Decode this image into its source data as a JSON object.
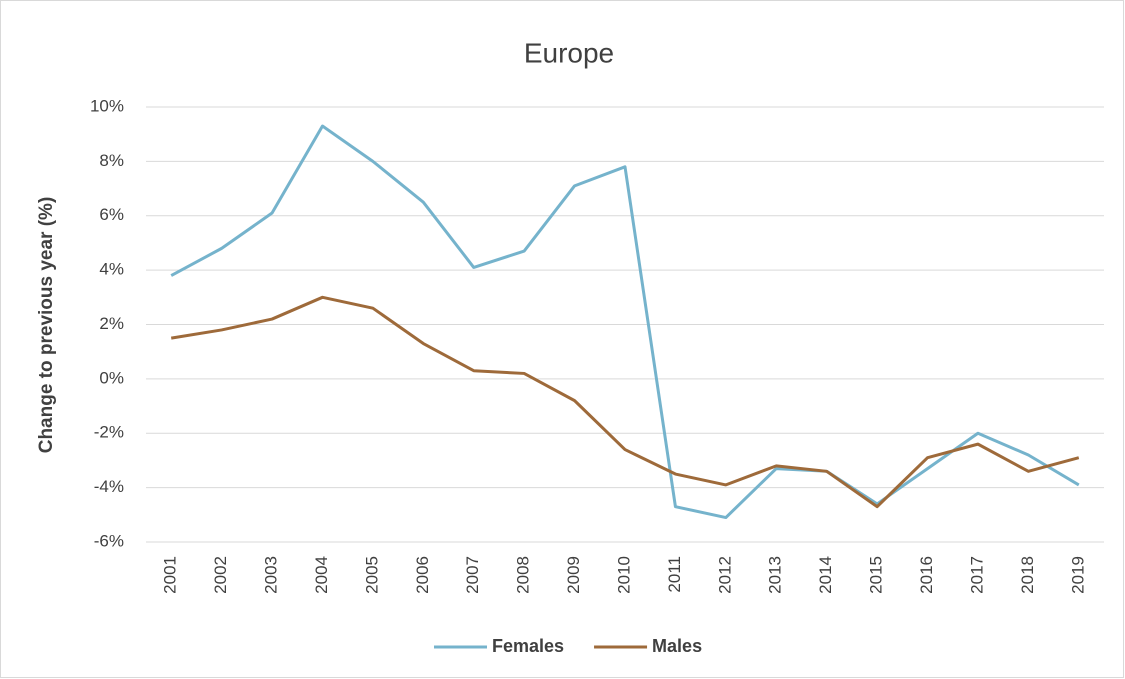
{
  "chart_data": {
    "type": "line",
    "title": "Europe",
    "y_label": "Change to previous year (%)",
    "categories": [
      "2001",
      "2002",
      "2003",
      "2004",
      "2005",
      "2006",
      "2007",
      "2008",
      "2009",
      "2010",
      "2011",
      "2012",
      "2013",
      "2014",
      "2015",
      "2016",
      "2017",
      "2018",
      "2019"
    ],
    "series": [
      {
        "name": "Females",
        "color": "#75b3cc",
        "values": [
          3.8,
          4.8,
          6.1,
          9.3,
          8.0,
          6.5,
          4.1,
          4.7,
          7.1,
          7.8,
          -4.7,
          -5.1,
          -3.3,
          -3.4,
          -4.6,
          -3.3,
          -2.0,
          -2.8,
          -3.9
        ]
      },
      {
        "name": "Males",
        "color": "#9e6a3a",
        "values": [
          1.5,
          1.8,
          2.2,
          3.0,
          2.6,
          1.3,
          0.3,
          0.2,
          -0.8,
          -2.6,
          -3.5,
          -3.9,
          -3.2,
          -3.4,
          -4.7,
          -2.9,
          -2.4,
          -3.4,
          -2.9
        ]
      }
    ],
    "ylim": [
      -6,
      10
    ],
    "yticks": [
      {
        "value": -6,
        "label": "-6%"
      },
      {
        "value": -4,
        "label": "-4%"
      },
      {
        "value": -2,
        "label": "-2%"
      },
      {
        "value": 0,
        "label": "0%"
      },
      {
        "value": 2,
        "label": "2%"
      },
      {
        "value": 4,
        "label": "4%"
      },
      {
        "value": 6,
        "label": "6%"
      },
      {
        "value": 8,
        "label": "8%"
      },
      {
        "value": 10,
        "label": "10%"
      }
    ],
    "grid": true,
    "legend": "bottom"
  }
}
